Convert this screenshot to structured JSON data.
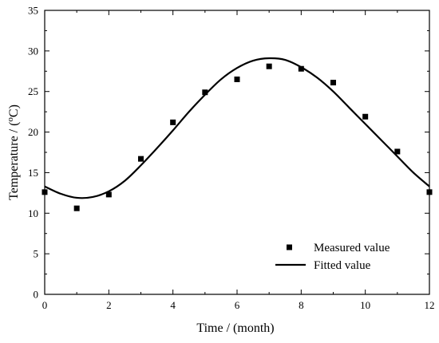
{
  "chart_data": {
    "type": "scatter",
    "title": "",
    "xlabel": "Time / (month)",
    "ylabel_prefix": "Temperature / (",
    "ylabel_sup": "o",
    "ylabel_suffix": "C)",
    "xlim": [
      0,
      12
    ],
    "ylim": [
      0,
      35
    ],
    "x_ticks": [
      "0",
      "2",
      "4",
      "6",
      "8",
      "10",
      "12"
    ],
    "y_ticks": [
      "0",
      "5",
      "10",
      "15",
      "20",
      "25",
      "30",
      "35"
    ],
    "grid": false,
    "legend_position": "bottom-right",
    "series": [
      {
        "name": "Measured value",
        "kind": "scatter",
        "marker": "square",
        "color": "#000000",
        "x": [
          0,
          1,
          2,
          3,
          4,
          5,
          6,
          7,
          8,
          9,
          10,
          11,
          12
        ],
        "y": [
          12.6,
          10.6,
          12.3,
          16.7,
          21.2,
          24.9,
          26.5,
          28.1,
          27.8,
          26.1,
          21.9,
          17.6,
          12.6
        ]
      },
      {
        "name": "Fitted value",
        "kind": "line",
        "color": "#000000",
        "x": [
          0,
          0.5,
          1,
          1.5,
          2,
          2.5,
          3,
          3.5,
          4,
          4.5,
          5,
          5.5,
          6,
          6.5,
          7,
          7.5,
          8,
          8.5,
          9,
          9.5,
          10,
          10.5,
          11,
          11.5,
          12
        ],
        "y": [
          13.3,
          12.4,
          11.9,
          12.0,
          12.7,
          14.0,
          15.9,
          18.0,
          20.2,
          22.5,
          24.6,
          26.5,
          27.9,
          28.8,
          29.1,
          28.9,
          28.0,
          26.7,
          25.0,
          23.0,
          21.0,
          19.0,
          17.0,
          15.0,
          13.3
        ]
      }
    ]
  }
}
